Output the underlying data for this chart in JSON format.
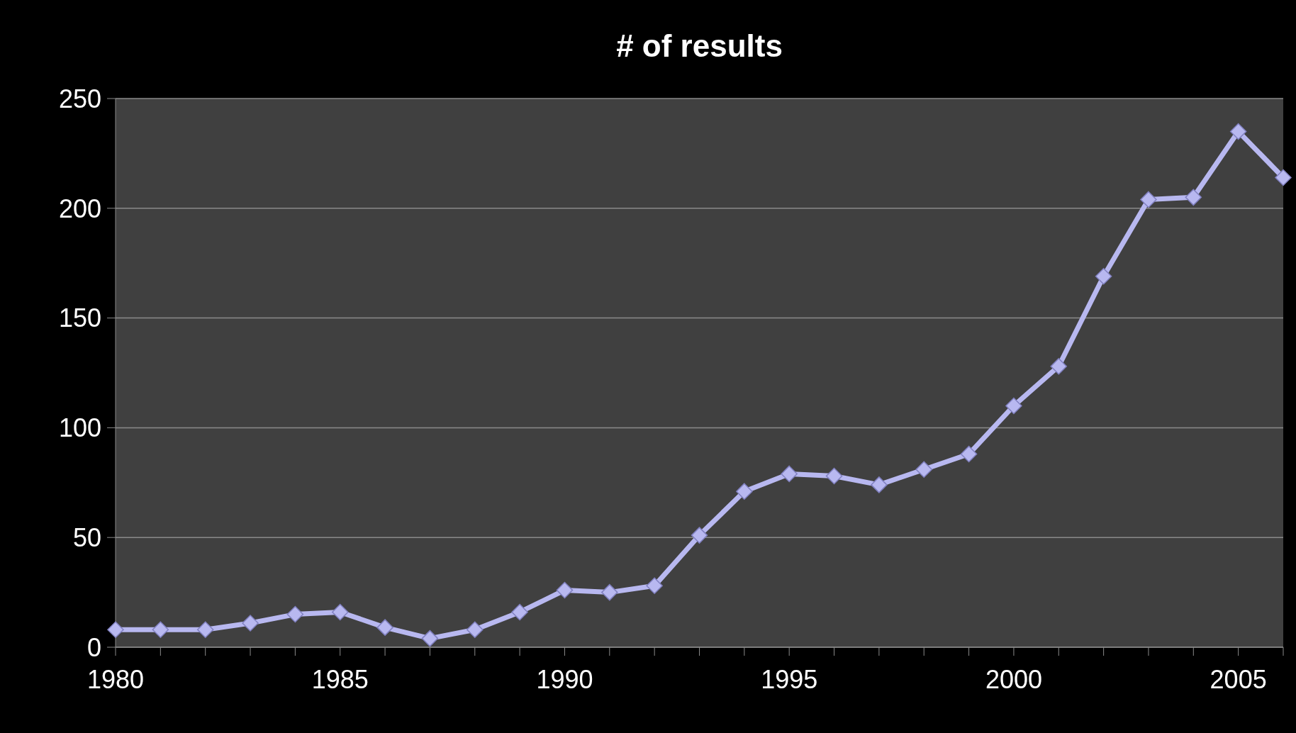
{
  "chart_data": {
    "type": "line",
    "title": "# of results",
    "categories": [
      "1980",
      null,
      null,
      null,
      null,
      "1985",
      null,
      null,
      null,
      null,
      "1990",
      null,
      null,
      null,
      null,
      "1995",
      null,
      null,
      null,
      null,
      "2000",
      null,
      null,
      null,
      null,
      "2005",
      null
    ],
    "values": [
      8,
      8,
      8,
      11,
      15,
      16,
      9,
      4,
      8,
      16,
      26,
      25,
      28,
      51,
      71,
      79,
      78,
      74,
      81,
      88,
      110,
      128,
      169,
      204,
      205,
      235,
      214
    ],
    "color": "#b8b8f0",
    "ylim": [
      0,
      250
    ],
    "yticks": [
      0,
      50,
      100,
      150,
      200,
      250
    ],
    "grid": "y",
    "marker": "diamond",
    "line_style": "solid"
  }
}
